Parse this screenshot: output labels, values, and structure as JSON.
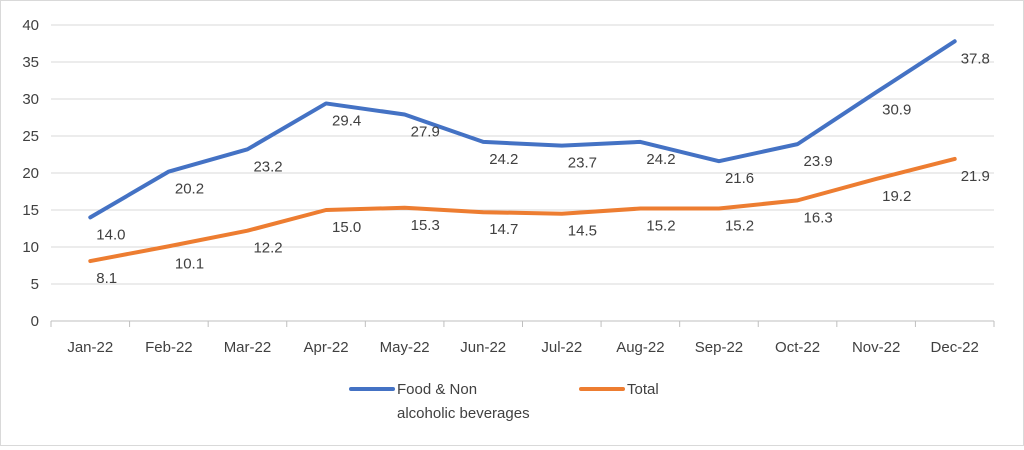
{
  "chart_data": {
    "type": "line",
    "categories": [
      "Jan-22",
      "Feb-22",
      "Mar-22",
      "Apr-22",
      "May-22",
      "Jun-22",
      "Jul-22",
      "Aug-22",
      "Sep-22",
      "Oct-22",
      "Nov-22",
      "Dec-22"
    ],
    "ylim": [
      0,
      40
    ],
    "yticks": [
      "0",
      "5",
      "10",
      "15",
      "20",
      "25",
      "30",
      "35",
      "40"
    ],
    "grid": true,
    "legend_position": "bottom",
    "series": [
      {
        "name_line1": "Food & Non",
        "name_line2": "alcoholic beverages",
        "color": "#4472C4",
        "values": [
          14.0,
          20.2,
          23.2,
          29.4,
          27.9,
          24.2,
          23.7,
          24.2,
          21.6,
          23.9,
          30.9,
          37.8
        ],
        "labels": [
          "14.0",
          "20.2",
          "23.2",
          "29.4",
          "27.9",
          "24.2",
          "23.7",
          "24.2",
          "21.6",
          "23.9",
          "30.9",
          "37.8"
        ]
      },
      {
        "name_line1": "Total",
        "name_line2": "",
        "color": "#ED7D31",
        "values": [
          8.1,
          10.1,
          12.2,
          15.0,
          15.3,
          14.7,
          14.5,
          15.2,
          15.2,
          16.3,
          19.2,
          21.9
        ],
        "labels": [
          "8.1",
          "10.1",
          "12.2",
          "15.0",
          "15.3",
          "14.7",
          "14.5",
          "15.2",
          "15.2",
          "16.3",
          "19.2",
          "21.9"
        ]
      }
    ]
  }
}
